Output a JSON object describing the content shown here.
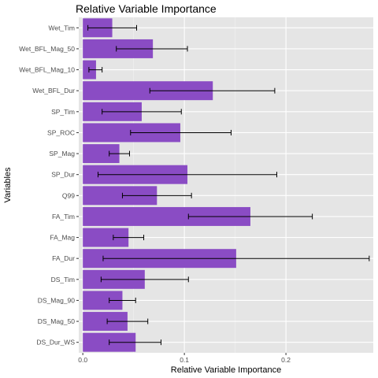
{
  "chart_data": {
    "type": "bar",
    "orientation": "horizontal",
    "title": "Relative Variable Importance",
    "xlabel": "Relative Variable Importance",
    "ylabel": "Variables",
    "xlim": [
      -0.004,
      0.286
    ],
    "xticks": [
      0.0,
      0.1,
      0.2
    ],
    "xtick_labels": [
      "0.0",
      "0.1",
      "0.2"
    ],
    "grid": true,
    "legend": "none",
    "colors": {
      "bar": "#8a4cc4",
      "panel": "#e5e5e5",
      "grid_major": "#ffffff",
      "errorbar": "#000000"
    },
    "categories": [
      "Wet_Tim",
      "Wet_BFL_Mag_50",
      "Wet_BFL_Mag_10",
      "Wet_BFL_Dur",
      "SP_Tim",
      "SP_ROC",
      "SP_Mag",
      "SP_Dur",
      "Q99",
      "FA_Tim",
      "FA_Mag",
      "FA_Dur",
      "DS_Tim",
      "DS_Mag_90",
      "DS_Mag_50",
      "DS_Dur_WS"
    ],
    "values": [
      0.029,
      0.069,
      0.013,
      0.128,
      0.058,
      0.096,
      0.036,
      0.103,
      0.073,
      0.165,
      0.045,
      0.151,
      0.061,
      0.039,
      0.044,
      0.052
    ],
    "error_low": [
      0.005,
      0.033,
      0.006,
      0.066,
      0.019,
      0.047,
      0.026,
      0.015,
      0.039,
      0.104,
      0.03,
      0.02,
      0.018,
      0.026,
      0.024,
      0.026
    ],
    "error_high": [
      0.053,
      0.103,
      0.019,
      0.189,
      0.097,
      0.146,
      0.046,
      0.191,
      0.107,
      0.226,
      0.06,
      0.282,
      0.104,
      0.052,
      0.064,
      0.077
    ]
  }
}
